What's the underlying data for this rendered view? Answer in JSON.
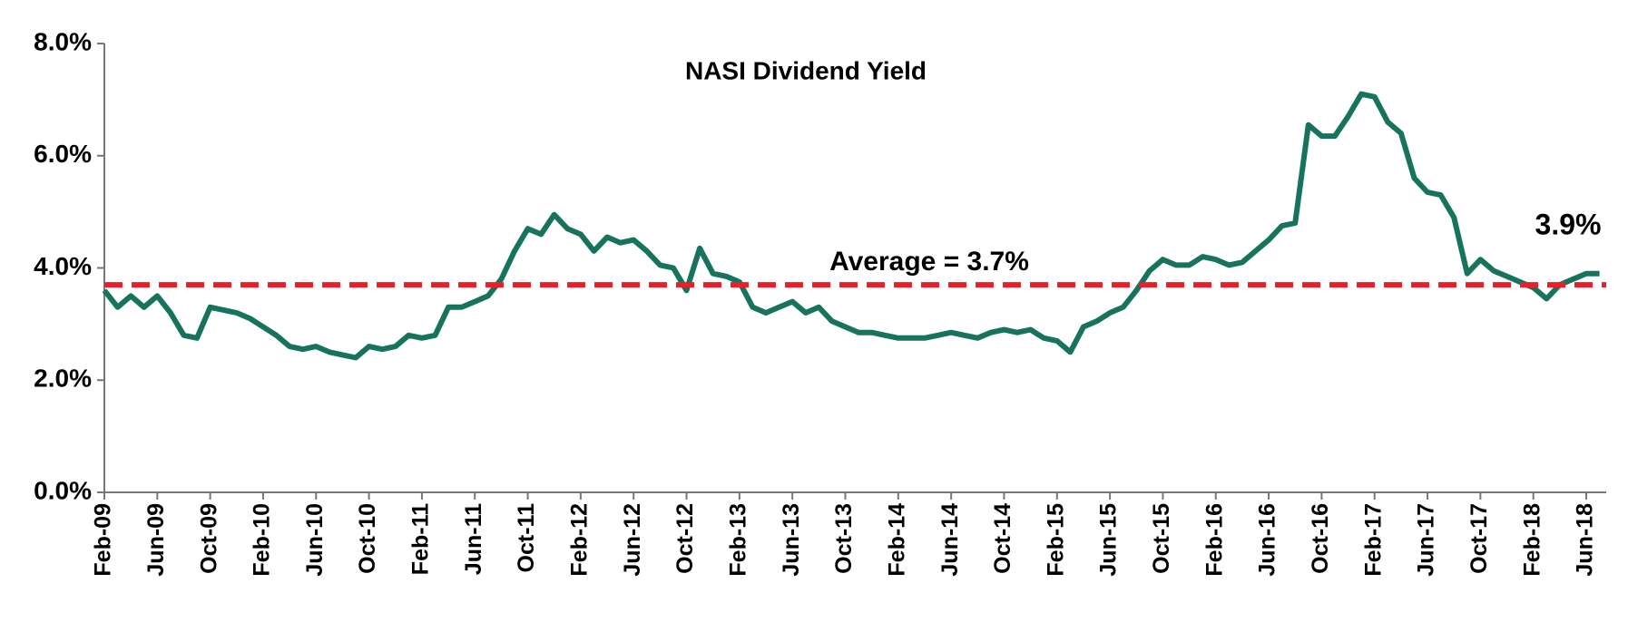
{
  "chart_data": {
    "type": "line",
    "title": "NASI Dividend Yield",
    "categories": [
      "Feb-09",
      null,
      null,
      null,
      "Jun-09",
      null,
      null,
      null,
      "Oct-09",
      null,
      null,
      null,
      "Feb-10",
      null,
      null,
      null,
      "Jun-10",
      null,
      null,
      null,
      "Oct-10",
      null,
      null,
      null,
      "Feb-11",
      null,
      null,
      null,
      "Jun-11",
      null,
      null,
      null,
      "Oct-11",
      null,
      null,
      null,
      "Feb-12",
      null,
      null,
      null,
      "Jun-12",
      null,
      null,
      null,
      "Oct-12",
      null,
      null,
      null,
      "Feb-13",
      null,
      null,
      null,
      "Jun-13",
      null,
      null,
      null,
      "Oct-13",
      null,
      null,
      null,
      "Feb-14",
      null,
      null,
      null,
      "Jun-14",
      null,
      null,
      null,
      "Oct-14",
      null,
      null,
      null,
      "Feb-15",
      null,
      null,
      null,
      "Jun-15",
      null,
      null,
      null,
      "Oct-15",
      null,
      null,
      null,
      "Feb-16",
      null,
      null,
      null,
      "Jun-16",
      null,
      null,
      null,
      "Oct-16",
      null,
      null,
      null,
      "Feb-17",
      null,
      null,
      null,
      "Jun-17",
      null,
      null,
      null,
      "Oct-17",
      null,
      null,
      null,
      "Feb-18",
      null,
      null,
      null,
      "Jun-18",
      null
    ],
    "values": [
      3.6,
      3.3,
      3.5,
      3.3,
      3.5,
      3.2,
      2.8,
      2.75,
      3.3,
      3.25,
      3.2,
      3.1,
      2.95,
      2.8,
      2.6,
      2.55,
      2.6,
      2.5,
      2.45,
      2.4,
      2.6,
      2.55,
      2.6,
      2.8,
      2.75,
      2.8,
      3.3,
      3.3,
      3.4,
      3.5,
      3.8,
      4.3,
      4.7,
      4.6,
      4.95,
      4.7,
      4.6,
      4.3,
      4.55,
      4.45,
      4.5,
      4.3,
      4.05,
      4.0,
      3.6,
      4.35,
      3.9,
      3.85,
      3.75,
      3.3,
      3.2,
      3.3,
      3.4,
      3.2,
      3.3,
      3.05,
      2.95,
      2.85,
      2.85,
      2.8,
      2.75,
      2.75,
      2.75,
      2.8,
      2.85,
      2.8,
      2.75,
      2.85,
      2.9,
      2.85,
      2.9,
      2.75,
      2.7,
      2.5,
      2.95,
      3.05,
      3.2,
      3.3,
      3.6,
      3.95,
      4.15,
      4.05,
      4.05,
      4.2,
      4.15,
      4.05,
      4.1,
      4.3,
      4.5,
      4.75,
      4.8,
      6.55,
      6.35,
      6.35,
      6.7,
      7.1,
      7.05,
      6.6,
      6.4,
      5.6,
      5.35,
      5.3,
      4.9,
      3.9,
      4.15,
      3.95,
      3.85,
      3.75,
      3.65,
      3.45,
      3.7,
      3.8,
      3.9,
      3.9
    ],
    "color": "#17735e",
    "average": 3.7,
    "average_color": "#e8202a",
    "annotations": [
      "Average = 3.7%",
      "3.9%"
    ],
    "ylim": [
      0,
      8
    ],
    "yticks": [
      {
        "value": 0,
        "label": "0.0%"
      },
      {
        "value": 2,
        "label": "2.0%"
      },
      {
        "value": 4,
        "label": "4.0%"
      },
      {
        "value": 6,
        "label": "6.0%"
      },
      {
        "value": 8,
        "label": "8.0%"
      }
    ]
  }
}
